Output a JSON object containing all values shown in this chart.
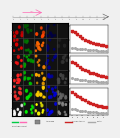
{
  "fig_bg": "#f0f0f0",
  "left_panel_bg": "#111111",
  "right_panels": [
    {
      "x_ticks": [
        0,
        1,
        2,
        3,
        4,
        5,
        6,
        7,
        8,
        9,
        10,
        11,
        12,
        13
      ],
      "red_values": [
        0.82,
        0.78,
        0.7,
        0.62,
        0.55,
        0.5,
        0.45,
        0.4,
        0.38,
        0.35,
        0.32,
        0.3,
        0.28,
        0.25
      ],
      "gray_values": [
        0.2,
        0.18,
        0.16,
        0.15,
        0.14,
        0.13,
        0.12,
        0.11,
        0.1,
        0.09,
        0.08,
        0.08,
        0.07,
        0.06
      ]
    },
    {
      "x_ticks": [
        0,
        1,
        2,
        3,
        4,
        5,
        6,
        7,
        8,
        9,
        10,
        11,
        12,
        13
      ],
      "red_values": [
        0.85,
        0.8,
        0.72,
        0.65,
        0.58,
        0.53,
        0.48,
        0.43,
        0.4,
        0.37,
        0.34,
        0.32,
        0.3,
        0.28
      ],
      "gray_values": [
        0.22,
        0.2,
        0.18,
        0.16,
        0.15,
        0.14,
        0.13,
        0.12,
        0.11,
        0.1,
        0.09,
        0.09,
        0.08,
        0.07
      ]
    },
    {
      "x_ticks": [
        0,
        1,
        2,
        3,
        4,
        5,
        6,
        7,
        8,
        9,
        10,
        11,
        12,
        13
      ],
      "red_values": [
        0.88,
        0.82,
        0.74,
        0.68,
        0.61,
        0.56,
        0.51,
        0.46,
        0.42,
        0.39,
        0.36,
        0.34,
        0.32,
        0.3
      ],
      "gray_values": [
        0.25,
        0.22,
        0.2,
        0.18,
        0.16,
        0.15,
        0.14,
        0.13,
        0.12,
        0.11,
        0.1,
        0.1,
        0.09,
        0.08
      ]
    }
  ],
  "microscopy_rows": 6,
  "microscopy_cols": 5,
  "row_colors": [
    [
      "#ffffff",
      "#00ff00",
      "#ffff00",
      "#0000ee",
      "#888888"
    ],
    [
      "#ff3333",
      "#00dd00",
      "#ffcc00",
      "#0000cc",
      "#666666"
    ],
    [
      "#ff2222",
      "#00bb00",
      "#ffaa00",
      "#0000aa",
      "#444444"
    ],
    [
      "#ff1111",
      "#009900",
      "#ff8800",
      "#000088",
      "#333333"
    ],
    [
      "#dd0000",
      "#007700",
      "#ff6600",
      "#000066",
      "#222222"
    ],
    [
      "#cc0000",
      "#005500",
      "#ff4400",
      "#000044",
      "#111111"
    ]
  ],
  "top_timeline_color": "#cccccc",
  "pink_color": "#ff69b4",
  "green_color": "#00cc44",
  "arrow_color": "#555555"
}
